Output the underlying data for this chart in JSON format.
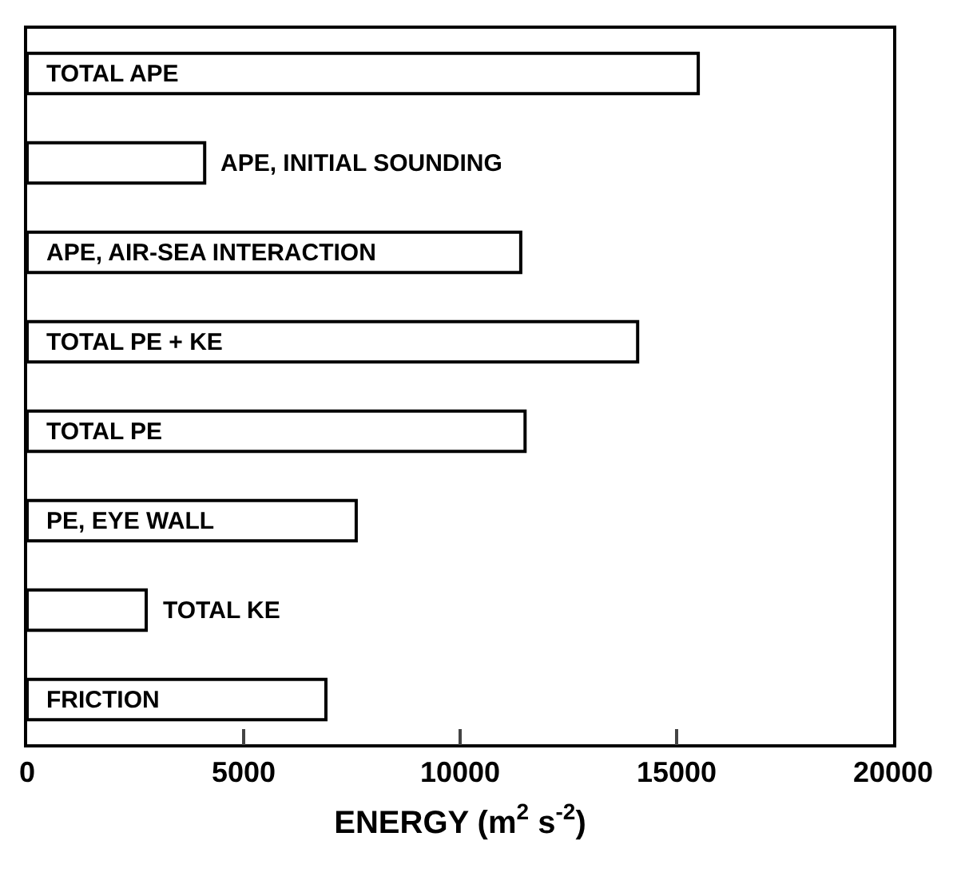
{
  "chart_data": {
    "type": "bar",
    "orientation": "horizontal",
    "categories": [
      "TOTAL APE",
      "APE, INITIAL SOUNDING",
      "APE, AIR-SEA INTERACTION",
      "TOTAL PE + KE",
      "TOTAL PE",
      "PE, EYE WALL",
      "TOTAL KE",
      "FRICTION"
    ],
    "values": [
      15500,
      4100,
      11400,
      14100,
      11500,
      7600,
      2750,
      6900
    ],
    "color": "#ffffff",
    "xlabel": "ENERGY (m$^{2}$ s$^{-2}$)",
    "xlim": [
      0,
      20000
    ],
    "xticks": [
      0,
      5000,
      10000,
      15000,
      20000
    ]
  }
}
